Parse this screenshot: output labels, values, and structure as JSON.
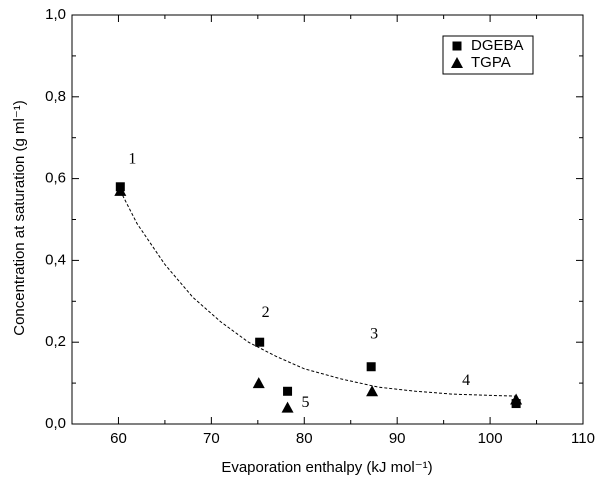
{
  "chart_data": {
    "type": "scatter",
    "x_label": "Evaporation enthalpy (kJ mol⁻¹)",
    "y_label": "Concentration at saturation (g ml⁻¹)",
    "xlim": [
      55,
      110
    ],
    "xticks": [
      60,
      70,
      80,
      90,
      100,
      110
    ],
    "ylim": [
      0,
      1
    ],
    "yticks": [
      {
        "value": 0,
        "label": "0,0"
      },
      {
        "value": 0.2,
        "label": "0,2"
      },
      {
        "value": 0.4,
        "label": "0,4"
      },
      {
        "value": 0.6,
        "label": "0,6"
      },
      {
        "value": 0.8,
        "label": "0,8"
      },
      {
        "value": 1,
        "label": "1,0"
      }
    ],
    "legend": "upper right",
    "series": [
      {
        "name": "DGEBA",
        "color": "#000000",
        "marker": "square",
        "x": [
          60.2,
          75.2,
          78.2,
          87.2,
          102.8
        ],
        "values": [
          0.58,
          0.2,
          0.08,
          0.14,
          0.05
        ]
      },
      {
        "name": "TGPA",
        "color": "#000000",
        "marker": "triangle",
        "x": [
          60.2,
          75.1,
          78.2,
          87.3,
          102.8
        ],
        "values": [
          0.57,
          0.1,
          0.04,
          0.08,
          0.06
        ]
      }
    ],
    "point_labels": [
      "1",
      "2",
      "5",
      "3",
      "4"
    ],
    "fit_curve": {
      "x": [
        60.2,
        62,
        65,
        68,
        71,
        74,
        77,
        80,
        84,
        88,
        92,
        96,
        100,
        103
      ],
      "values": [
        0.57,
        0.49,
        0.39,
        0.31,
        0.25,
        0.2,
        0.165,
        0.135,
        0.11,
        0.09,
        0.08,
        0.073,
        0.07,
        0.068
      ]
    }
  }
}
